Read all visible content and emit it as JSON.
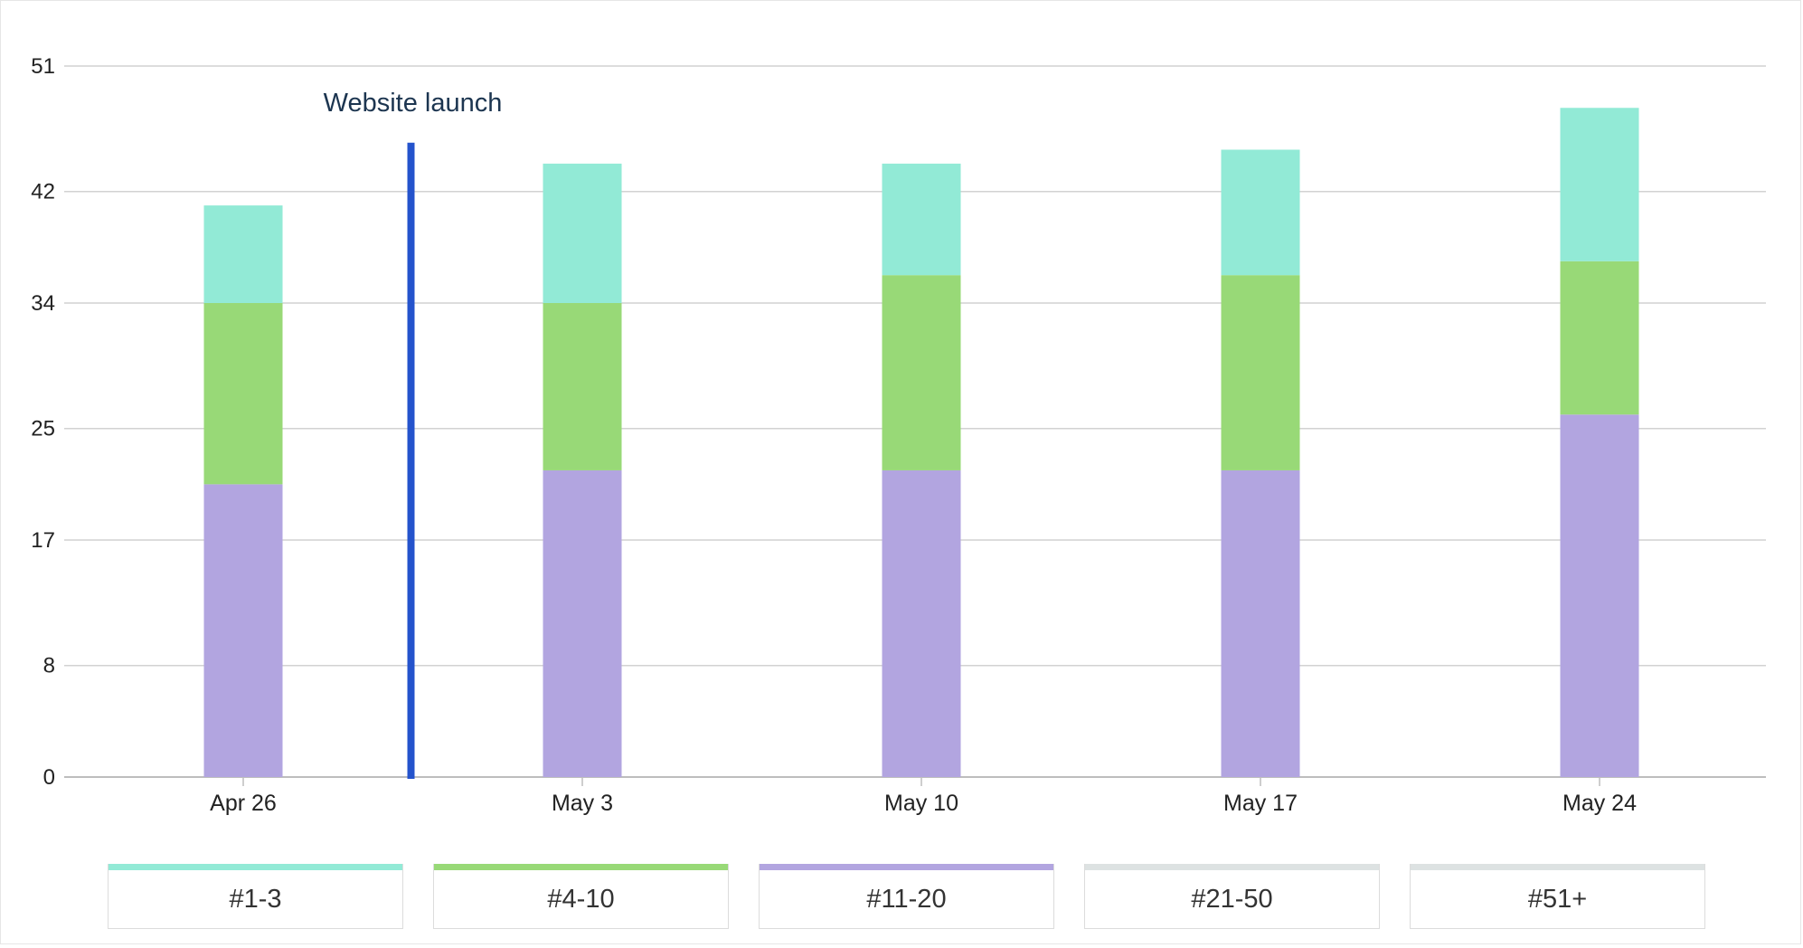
{
  "chart_data": {
    "type": "bar",
    "stacked": true,
    "categories": [
      "Apr 26",
      "May 3",
      "May 10",
      "May 17",
      "May 24"
    ],
    "series": [
      {
        "name": "#11-20",
        "color": "#b2a5e0",
        "values": [
          21,
          22,
          22,
          22,
          26
        ]
      },
      {
        "name": "#4-10",
        "color": "#98d977",
        "values": [
          13,
          12,
          14,
          14,
          11
        ]
      },
      {
        "name": "#1-3",
        "color": "#92ead6",
        "values": [
          7,
          10,
          8,
          9,
          11
        ]
      },
      {
        "name": "#21-50",
        "color": "#dde2e2",
        "values": [
          0,
          0,
          0,
          0,
          0
        ]
      },
      {
        "name": "#51+",
        "color": "#dde2e2",
        "values": [
          0,
          0,
          0,
          0,
          0
        ]
      }
    ],
    "y_ticks": [
      0,
      8,
      17,
      25,
      34,
      42,
      51
    ],
    "ylim": [
      0,
      51
    ],
    "grid": true,
    "legend_position": "bottom",
    "annotation": {
      "label": "Website launch",
      "color": "#2453cc",
      "between": [
        "Apr 26",
        "May 3"
      ],
      "top_value": 45.5
    }
  },
  "legend": {
    "items": [
      {
        "label": "#1-3",
        "color": "#92ead6"
      },
      {
        "label": "#4-10",
        "color": "#98d977"
      },
      {
        "label": "#11-20",
        "color": "#b2a5e0"
      },
      {
        "label": "#21-50",
        "color": "#dde2e2"
      },
      {
        "label": "#51+",
        "color": "#dde2e2"
      }
    ]
  }
}
